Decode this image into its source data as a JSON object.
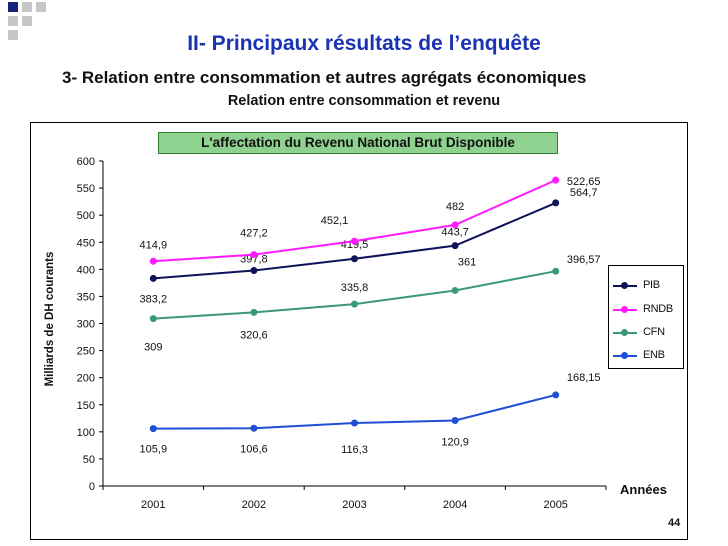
{
  "slide": {
    "title": "II- Principaux résultats de l’enquête",
    "subtitle": "3- Relation entre consommation  et autres agrégats économiques",
    "subsubtitle": "Relation entre consommation et revenu",
    "page_number": "44",
    "accent_color": "#1a33b3"
  },
  "chart_data": {
    "type": "line",
    "title": "L'affectation du Revenu National Brut Disponible",
    "xlabel": "Années",
    "ylabel": "Milliards de DH courants",
    "ylim": [
      0,
      600
    ],
    "yticks": [
      "0",
      "50",
      "100",
      "150",
      "200",
      "250",
      "300",
      "350",
      "400",
      "450",
      "500",
      "550",
      "600"
    ],
    "categories": [
      "2001",
      "2002",
      "2003",
      "2004",
      "2005"
    ],
    "grid": false,
    "legend_position": "right",
    "series": [
      {
        "name": "PIB",
        "color": "#0d1259",
        "values": [
          383.2,
          397.8,
          419.5,
          443.7,
          522.65
        ],
        "labels": [
          "383,2",
          "397,8",
          "419,5",
          "443,7",
          "522,65"
        ]
      },
      {
        "name": "RNDB",
        "color": "#ff1aff",
        "values": [
          414.9,
          427.2,
          452.1,
          482,
          564.7
        ],
        "labels": [
          "414,9",
          "427,2",
          "452,1",
          "482",
          "564,7"
        ]
      },
      {
        "name": "CFN",
        "color": "#3b9a74",
        "values": [
          309,
          320.6,
          335.8,
          361,
          396.57
        ],
        "labels": [
          "309",
          "320,6",
          "335,8",
          "361",
          "396,57"
        ]
      },
      {
        "name": "ENB",
        "color": "#1f4fd6",
        "values": [
          105.9,
          106.6,
          116.3,
          120.9,
          168.15
        ],
        "labels": [
          "105,9",
          "106,6",
          "116,3",
          "120,9",
          "168,15"
        ]
      }
    ]
  }
}
